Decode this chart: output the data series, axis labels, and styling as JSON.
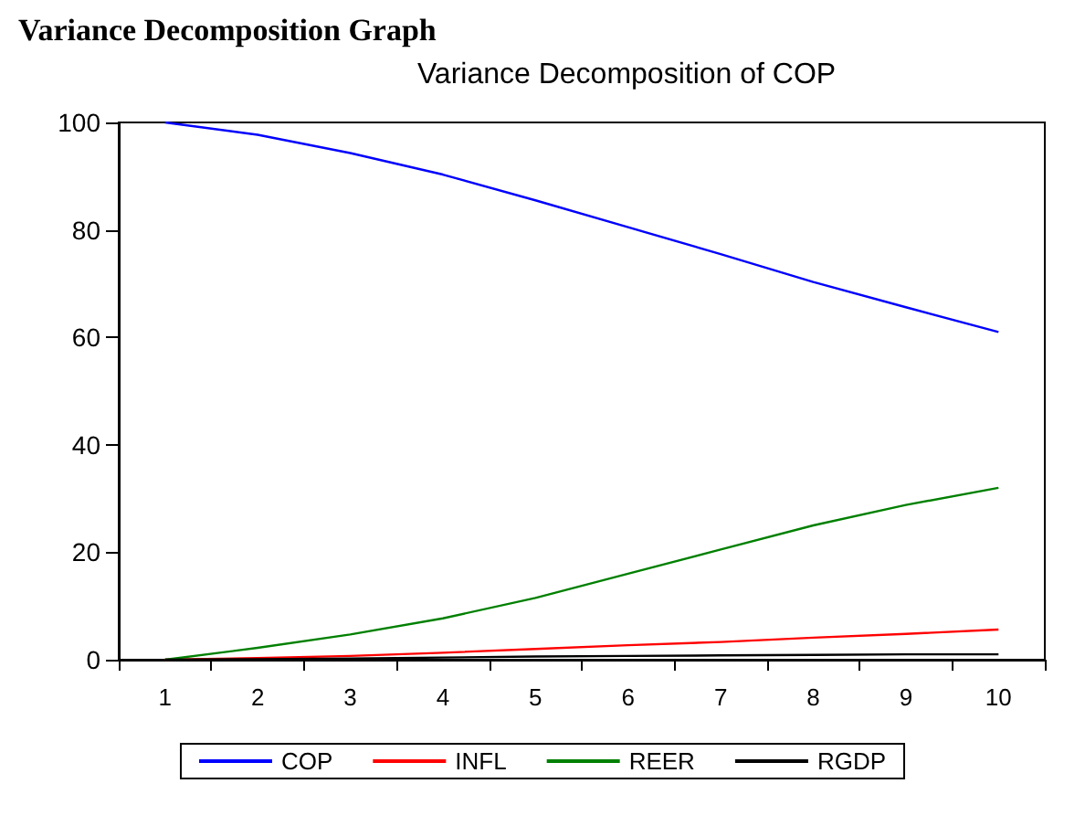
{
  "chart_data": {
    "type": "line",
    "title": "Variance Decomposition of COP",
    "annotations": [
      "Variance Decomposition Graph"
    ],
    "categories": [
      "1",
      "2",
      "3",
      "4",
      "5",
      "6",
      "7",
      "8",
      "9",
      "10"
    ],
    "series": [
      {
        "name": "COP",
        "color": "#0000ff",
        "values": [
          100,
          97.7,
          94.3,
          90.3,
          85.5,
          80.5,
          75.5,
          70.3,
          65.6,
          61
        ]
      },
      {
        "name": "INFL",
        "color": "#ff0000",
        "values": [
          0,
          0.3,
          0.7,
          1.3,
          2,
          2.7,
          3.3,
          4.1,
          4.8,
          5.6
        ]
      },
      {
        "name": "REER",
        "color": "#008000",
        "values": [
          0,
          2.2,
          4.7,
          7.7,
          11.5,
          16,
          20.5,
          25,
          28.8,
          32
        ]
      },
      {
        "name": "RGDP",
        "color": "#000000",
        "values": [
          0,
          0.1,
          0.2,
          0.4,
          0.6,
          0.7,
          0.8,
          0.9,
          1,
          1
        ]
      }
    ],
    "ylim": [
      0,
      100
    ],
    "yticks": [
      0,
      20,
      40,
      60,
      80,
      100
    ],
    "grid": false,
    "legend": "bottom",
    "marker": "none",
    "line_style": "solid"
  }
}
